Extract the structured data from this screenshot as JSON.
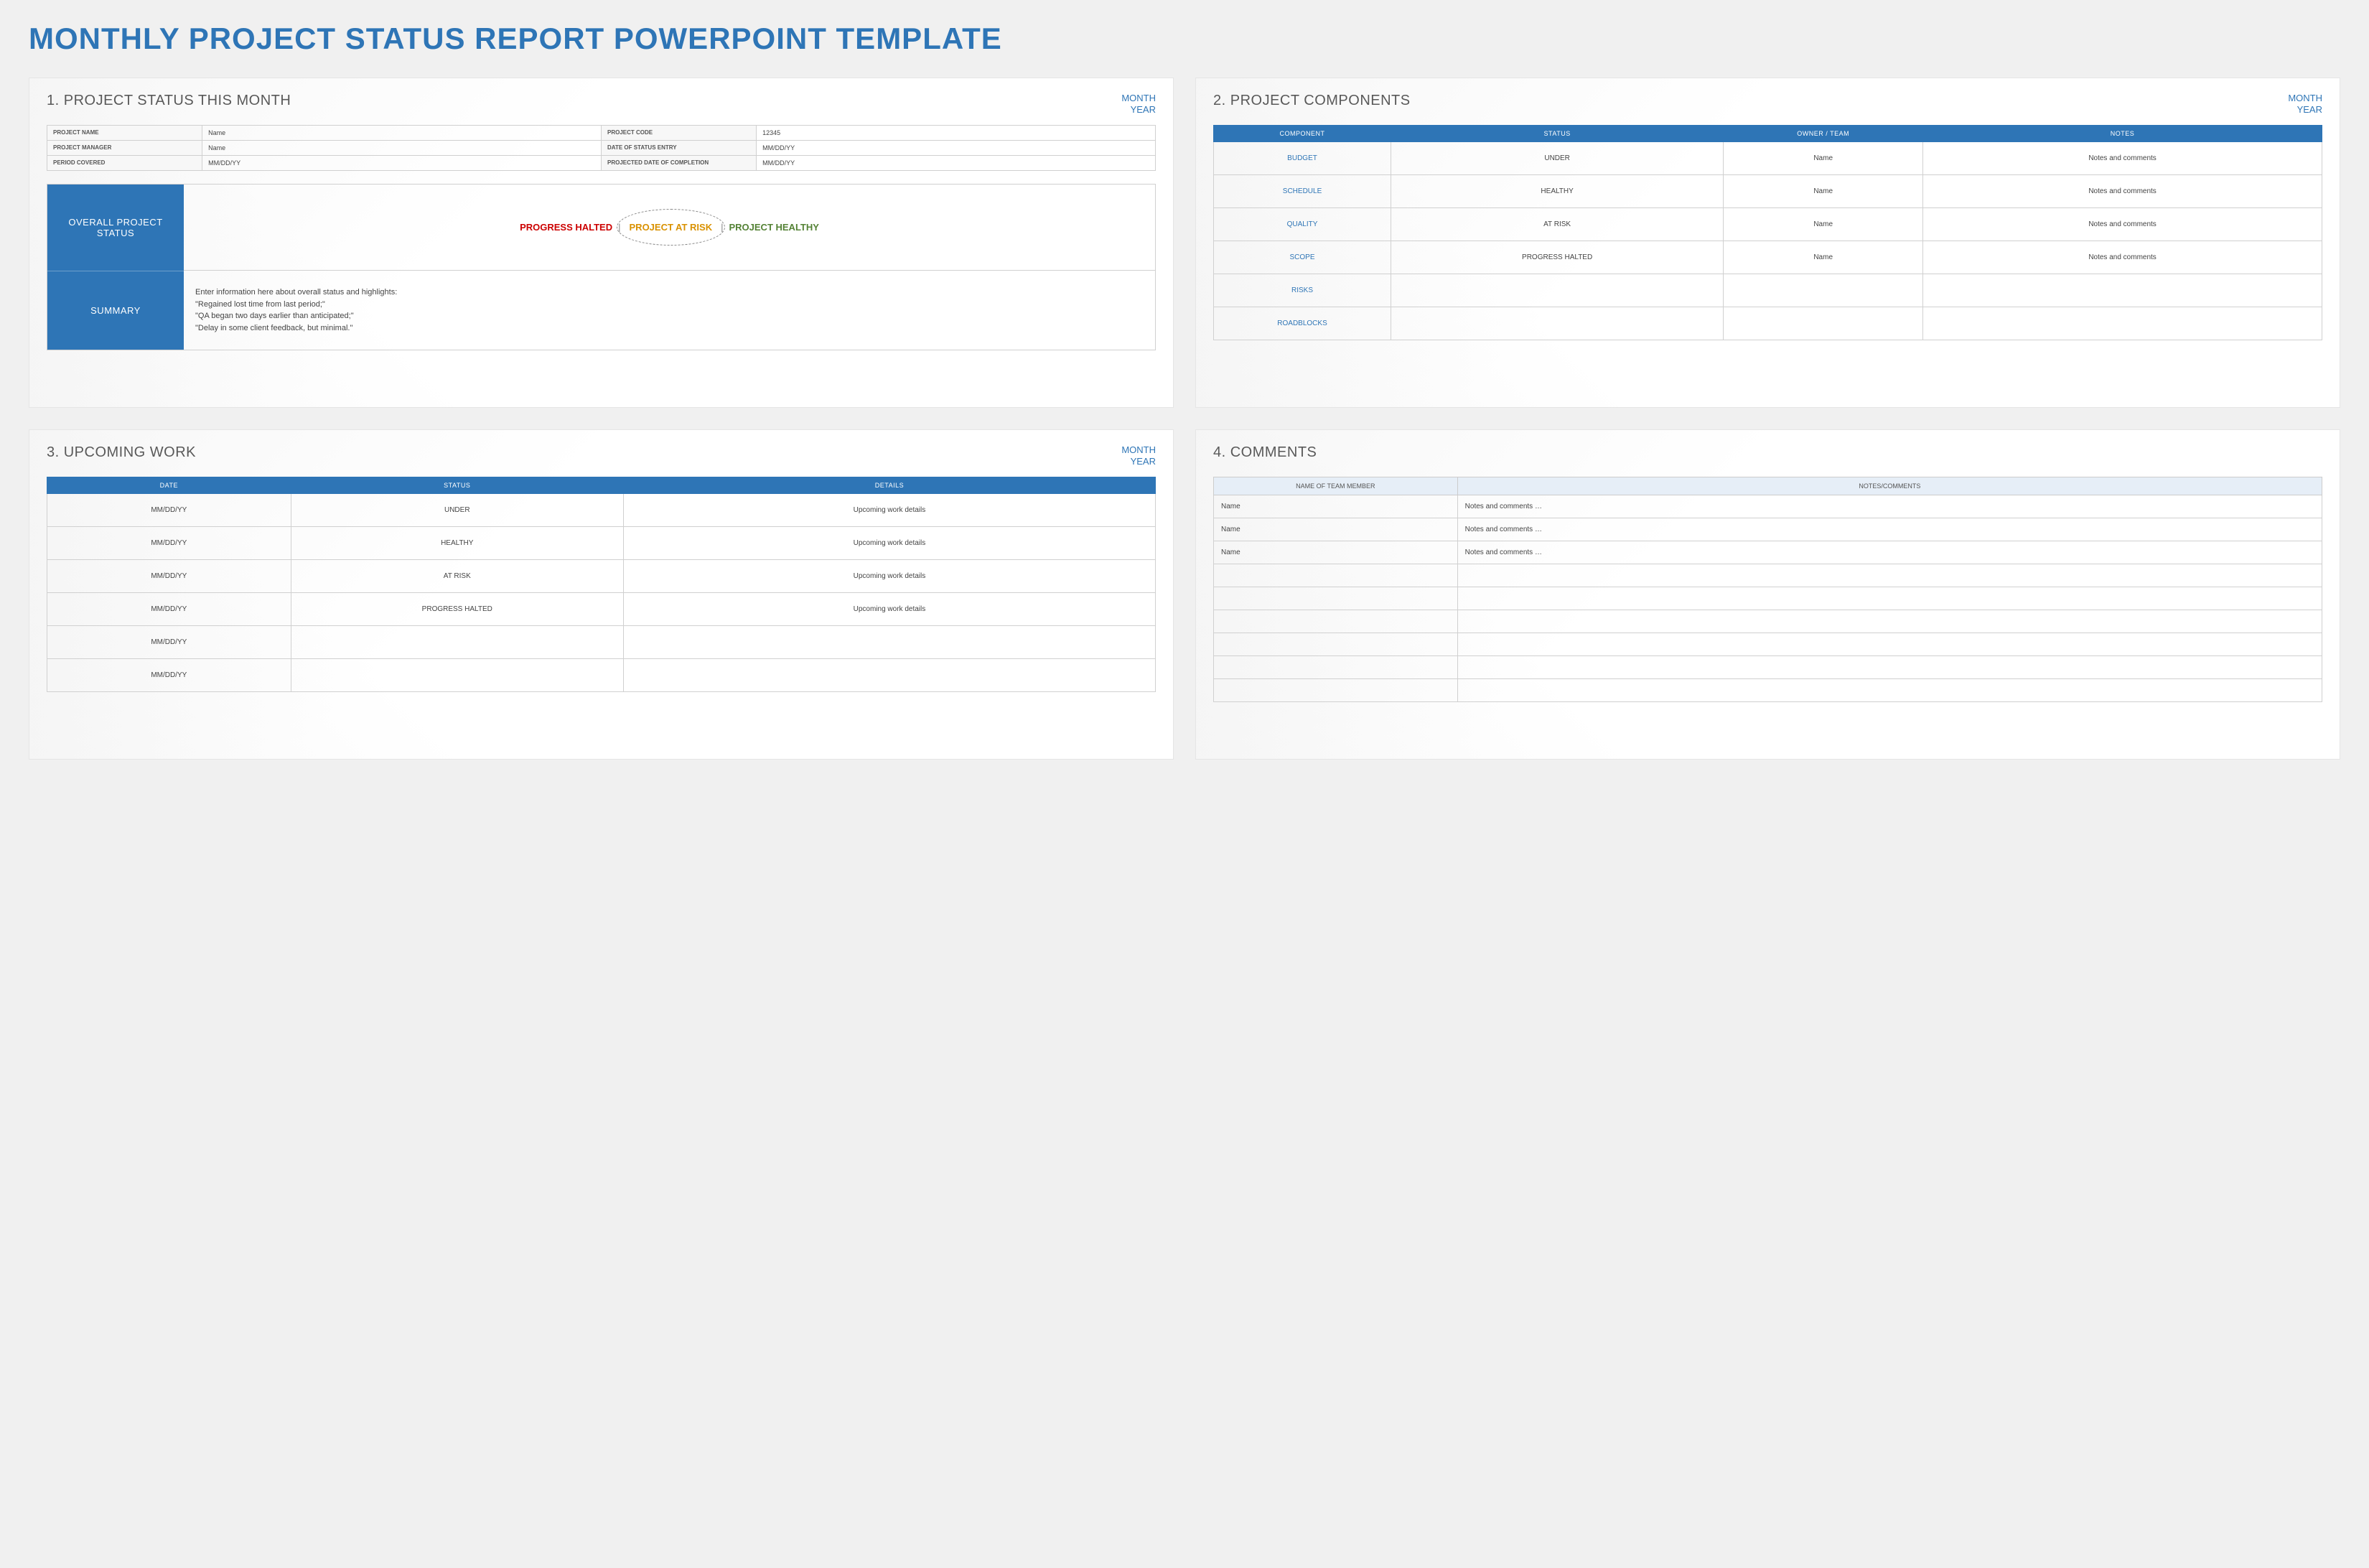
{
  "colors": {
    "accent": "#2e75b6",
    "halted": "#cc0000",
    "risk": "#d99100",
    "healthy": "#548235",
    "bg": "#f0f0f0",
    "header_bg": "#2e75b6",
    "comments_header_bg": "#e6eef7"
  },
  "main_title": "MONTHLY PROJECT STATUS REPORT POWERPOINT TEMPLATE",
  "period": {
    "line1": "MONTH",
    "line2": "YEAR"
  },
  "slide1": {
    "title": "1. PROJECT STATUS THIS MONTH",
    "meta": {
      "project_name_label": "PROJECT NAME",
      "project_name": "Name",
      "project_code_label": "PROJECT CODE",
      "project_code": "12345",
      "manager_label": "PROJECT MANAGER",
      "manager": "Name",
      "status_entry_label": "DATE OF STATUS ENTRY",
      "status_entry": "MM/DD/YY",
      "period_label": "PERIOD COVERED",
      "period": "MM/DD/YY",
      "completion_label": "PROJECTED DATE OF COMPLETION",
      "completion": "MM/DD/YY"
    },
    "overall_label": "OVERALL PROJECT STATUS",
    "status_options": {
      "halted": "PROGRESS HALTED",
      "at_risk": "PROJECT AT RISK",
      "healthy": "PROJECT HEALTHY"
    },
    "summary_label": "SUMMARY",
    "summary_text": " Enter information here about overall status and highlights:\n\"Regained lost time from last period;\"\n\"QA began two days earlier than anticipated;\"\n\"Delay in some client feedback, but minimal.\""
  },
  "slide2": {
    "title": "2. PROJECT COMPONENTS",
    "headers": {
      "component": "COMPONENT",
      "status": "STATUS",
      "owner": "OWNER / TEAM",
      "notes": "NOTES"
    },
    "rows": [
      {
        "component": "BUDGET",
        "status": "UNDER",
        "status_class": "status-under",
        "owner": "Name",
        "notes": "Notes and comments"
      },
      {
        "component": "SCHEDULE",
        "status": "HEALTHY",
        "status_class": "status-healthy",
        "owner": "Name",
        "notes": "Notes and comments"
      },
      {
        "component": "QUALITY",
        "status": "AT RISK",
        "status_class": "status-risk",
        "owner": "Name",
        "notes": "Notes and comments"
      },
      {
        "component": "SCOPE",
        "status": "PROGRESS HALTED",
        "status_class": "status-halted",
        "owner": "Name",
        "notes": "Notes and comments"
      },
      {
        "component": "RISKS",
        "status": "",
        "status_class": "",
        "owner": "",
        "notes": ""
      },
      {
        "component": "ROADBLOCKS",
        "status": "",
        "status_class": "",
        "owner": "",
        "notes": ""
      }
    ]
  },
  "slide3": {
    "title": "3. UPCOMING WORK",
    "headers": {
      "date": "DATE",
      "status": "STATUS",
      "details": "DETAILS"
    },
    "rows": [
      {
        "date": "MM/DD/YY",
        "status": "UNDER",
        "status_class": "status-under",
        "details": "Upcoming work details"
      },
      {
        "date": "MM/DD/YY",
        "status": "HEALTHY",
        "status_class": "status-healthy",
        "details": "Upcoming work details"
      },
      {
        "date": "MM/DD/YY",
        "status": "AT RISK",
        "status_class": "status-risk",
        "details": "Upcoming work details"
      },
      {
        "date": "MM/DD/YY",
        "status": "PROGRESS HALTED",
        "status_class": "status-halted",
        "details": "Upcoming work details"
      },
      {
        "date": "MM/DD/YY",
        "status": "",
        "status_class": "",
        "details": ""
      },
      {
        "date": "MM/DD/YY",
        "status": "",
        "status_class": "",
        "details": ""
      }
    ]
  },
  "slide4": {
    "title": "4. COMMENTS",
    "headers": {
      "name": "NAME OF TEAM MEMBER",
      "notes": "NOTES/COMMENTS"
    },
    "rows": [
      {
        "name": "Name",
        "notes": "Notes and comments …"
      },
      {
        "name": "Name",
        "notes": "Notes and comments …"
      },
      {
        "name": "Name",
        "notes": "Notes and comments …"
      },
      {
        "name": "",
        "notes": ""
      },
      {
        "name": "",
        "notes": ""
      },
      {
        "name": "",
        "notes": ""
      },
      {
        "name": "",
        "notes": ""
      },
      {
        "name": "",
        "notes": ""
      },
      {
        "name": "",
        "notes": ""
      }
    ],
    "col_widths": {
      "name": "22%"
    }
  }
}
